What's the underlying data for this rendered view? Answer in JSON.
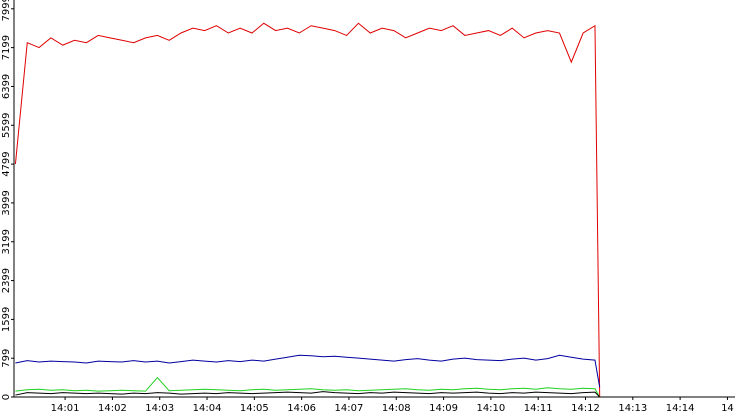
{
  "chart_data": {
    "type": "line",
    "x": [
      -0.05,
      0.2,
      0.45,
      0.7,
      0.95,
      1.2,
      1.45,
      1.7,
      1.95,
      2.2,
      2.45,
      2.7,
      2.95,
      3.2,
      3.45,
      3.7,
      3.95,
      4.2,
      4.45,
      4.7,
      4.95,
      5.2,
      5.45,
      5.7,
      5.95,
      6.2,
      6.45,
      6.7,
      6.95,
      7.2,
      7.45,
      7.7,
      7.95,
      8.2,
      8.45,
      8.7,
      8.95,
      9.2,
      9.45,
      9.7,
      9.95,
      10.2,
      10.45,
      10.7,
      10.95,
      11.2,
      11.45,
      11.7,
      11.95,
      12.2,
      12.3
    ],
    "series": [
      {
        "color": "#e00000",
        "values": [
          4800,
          7300,
          7200,
          7400,
          7250,
          7350,
          7300,
          7450,
          7400,
          7350,
          7300,
          7400,
          7450,
          7350,
          7500,
          7600,
          7550,
          7650,
          7500,
          7600,
          7500,
          7700,
          7550,
          7600,
          7500,
          7650,
          7600,
          7550,
          7450,
          7700,
          7500,
          7600,
          7550,
          7400,
          7500,
          7600,
          7550,
          7650,
          7450,
          7500,
          7550,
          7450,
          7600,
          7400,
          7500,
          7550,
          7500,
          6900,
          7500,
          7650,
          0
        ]
      },
      {
        "color": "#0000a0",
        "values": [
          700,
          750,
          720,
          740,
          730,
          720,
          700,
          740,
          730,
          720,
          750,
          720,
          740,
          700,
          730,
          760,
          740,
          720,
          750,
          730,
          760,
          740,
          780,
          820,
          860,
          850,
          830,
          840,
          820,
          800,
          780,
          760,
          740,
          770,
          790,
          760,
          740,
          780,
          800,
          770,
          760,
          750,
          780,
          800,
          760,
          790,
          860,
          820,
          780,
          760,
          200
        ]
      },
      {
        "color": "#20d020",
        "values": [
          120,
          150,
          160,
          140,
          150,
          130,
          140,
          120,
          130,
          140,
          130,
          120,
          400,
          130,
          140,
          150,
          160,
          150,
          140,
          130,
          150,
          160,
          140,
          150,
          160,
          170,
          150,
          140,
          150,
          130,
          140,
          150,
          160,
          170,
          150,
          140,
          160,
          150,
          170,
          180,
          160,
          150,
          170,
          180,
          160,
          190,
          170,
          160,
          180,
          170,
          0
        ]
      },
      {
        "color": "#000000",
        "values": [
          40,
          90,
          80,
          70,
          90,
          80,
          70,
          80,
          70,
          60,
          80,
          70,
          90,
          80,
          60,
          70,
          80,
          70,
          90,
          80,
          70,
          80,
          90,
          100,
          90,
          80,
          110,
          90,
          80,
          70,
          90,
          80,
          100,
          90,
          80,
          70,
          90,
          80,
          90,
          100,
          80,
          70,
          90,
          80,
          100,
          90,
          80,
          70,
          90,
          100,
          0
        ]
      }
    ],
    "xlim": [
      -0.08,
      15.16
    ],
    "xticks": [
      {
        "value": 1,
        "label": "14:01"
      },
      {
        "value": 2,
        "label": "14:02"
      },
      {
        "value": 3,
        "label": "14:03"
      },
      {
        "value": 4,
        "label": "14:04"
      },
      {
        "value": 5,
        "label": "14:05"
      },
      {
        "value": 6,
        "label": "14:06"
      },
      {
        "value": 7,
        "label": "14:07"
      },
      {
        "value": 8,
        "label": "14:08"
      },
      {
        "value": 9,
        "label": "14:09"
      },
      {
        "value": 10,
        "label": "14:10"
      },
      {
        "value": 11,
        "label": "14:11"
      },
      {
        "value": 12,
        "label": "14:12"
      },
      {
        "value": 13,
        "label": "14:13"
      },
      {
        "value": 14,
        "label": "14:14"
      },
      {
        "value": 15,
        "label": "14"
      }
    ],
    "ylim": [
      0,
      8180
    ],
    "yticks": [
      0,
      799,
      1599,
      2399,
      3199,
      3999,
      4799,
      5599,
      6399,
      7199,
      7999
    ]
  }
}
